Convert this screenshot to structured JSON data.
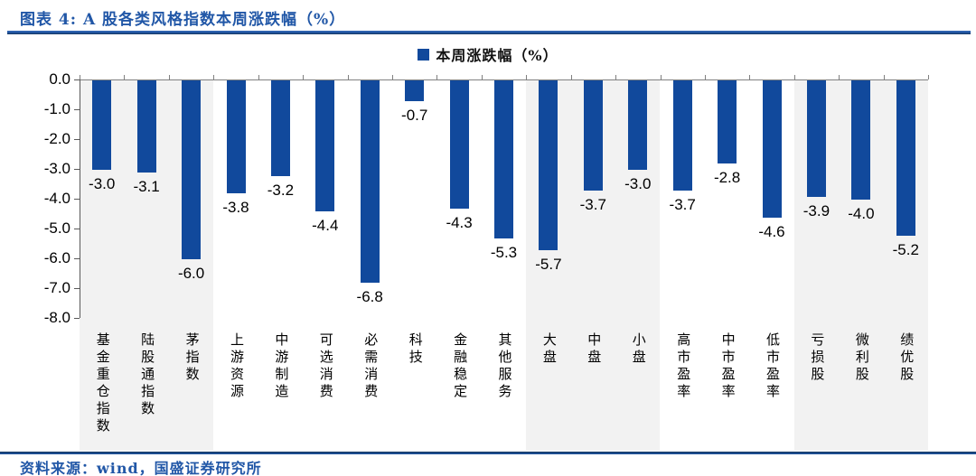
{
  "figure": {
    "title": "图表 4:  A 股各类风格指数本周涨跌幅（%）",
    "source_note": "资料来源：wind，国盛证券研究所"
  },
  "legend": {
    "marker": "blue-square",
    "label": "本周涨跌幅（%）"
  },
  "colors": {
    "bar": "#11499C",
    "band_gray": "#F2F2F2",
    "title_blue": "#2157A7",
    "rule_dark": "#17375E",
    "axis_gray": "#595959"
  },
  "chart_data": {
    "type": "bar",
    "title": "A股各类风格指数本周涨跌幅（%）",
    "legend_entries": [
      "本周涨跌幅（%）"
    ],
    "categories": [
      "基金重仓指数",
      "陆股通指数",
      "茅指数",
      "上游资源",
      "中游制造",
      "可选消费",
      "必需消费",
      "科技",
      "金融稳定",
      "其他服务",
      "大盘",
      "中盘",
      "小盘",
      "高市盈率",
      "中市盈率",
      "低市盈率",
      "亏损股",
      "微利股",
      "绩优股"
    ],
    "values": [
      -3.0,
      -3.1,
      -6.0,
      -3.8,
      -3.2,
      -4.4,
      -6.8,
      -0.7,
      -4.3,
      -5.3,
      -5.7,
      -3.7,
      -3.0,
      -3.7,
      -2.8,
      -4.6,
      -3.9,
      -4.0,
      -5.2
    ],
    "data_labels": [
      "-3.0",
      "-3.1",
      "-6.0",
      "-3.8",
      "-3.2",
      "-4.4",
      "-6.8",
      "-0.7",
      "-4.3",
      "-5.3",
      "-5.7",
      "-3.7",
      "-3.0",
      "-3.7",
      "-2.8",
      "-4.6",
      "-3.9",
      "-4.0",
      "-5.2"
    ],
    "xlabel": "",
    "ylabel": "",
    "ylim": [
      -8.0,
      0.0
    ],
    "ytick_step": 1.0,
    "yticks": [
      "0.0",
      "-1.0",
      "-2.0",
      "-3.0",
      "-4.0",
      "-5.0",
      "-6.0",
      "-7.0",
      "-8.0"
    ],
    "grid": false,
    "legend_position": "top-center",
    "shaded_bands": {
      "color": "#F2F2F2",
      "group_sizes": [
        3,
        7,
        3,
        3,
        3
      ],
      "shaded_flags": [
        true,
        false,
        true,
        false,
        true
      ]
    }
  }
}
